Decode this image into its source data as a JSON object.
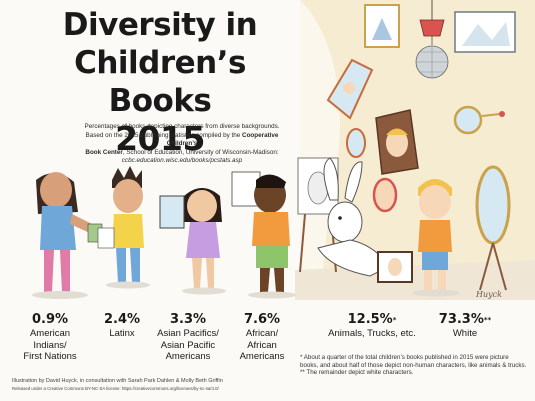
{
  "title": {
    "line1": "Diversity in",
    "line2": "Children’s Books",
    "line3": "2015"
  },
  "description": {
    "line1": "Percentages of books depicting characters from diverse backgrounds.",
    "line2_pre": "Based on the 2015 publishing statistics compiled by the ",
    "line2_bold": "Cooperative Children’s",
    "line3_bold": "Book Center",
    "line3_post": ", School of Education, University of Wisconsin-Madison:",
    "url": "ccbc.education.wisc.edu/books/pcstats.asp"
  },
  "chart_data": {
    "type": "table",
    "title": "Diversity in Children’s Books 2015",
    "categories": [
      "American Indians/ First Nations",
      "Latinx",
      "Asian Pacifics/ Asian Pacific Americans",
      "African/ African Americans",
      "Animals, Trucks, etc.",
      "White"
    ],
    "values": [
      0.9,
      2.4,
      3.3,
      7.6,
      12.5,
      73.3
    ],
    "unit": "%",
    "stats": [
      {
        "pct": "0.9%",
        "label1": "American",
        "label2": "Indians/",
        "label3": "First Nations",
        "mark": ""
      },
      {
        "pct": "2.4%",
        "label1": "Latinx",
        "label2": "",
        "label3": "",
        "mark": ""
      },
      {
        "pct": "3.3%",
        "label1": "Asian Pacifics/",
        "label2": "Asian Pacific",
        "label3": "Americans",
        "mark": ""
      },
      {
        "pct": "7.6%",
        "label1": "African/",
        "label2": "African",
        "label3": "Americans",
        "mark": ""
      },
      {
        "pct": "12.5%",
        "label1": "Animals, Trucks, etc.",
        "label2": "",
        "label3": "",
        "mark": "*"
      },
      {
        "pct": "73.3%",
        "label1": "White",
        "label2": "",
        "label3": "",
        "mark": "**"
      }
    ]
  },
  "footnotes": {
    "note1": "* About a quarter of the total children’s books published in 2015 were picture books, and about half of those depict non-human characters, like animals & trucks.",
    "note2": "** The remainder depict white characters."
  },
  "credits": {
    "line1": "Illustration by David Huyck, in consultation with Sarah Park Dahlen & Molly Beth Griffin",
    "line2": "Released under a Creative Commons BY-NC-SA license: https://creativecommons.org/licenses/by-nc-sa/4.0/"
  },
  "signature": "Huyck",
  "colors": {
    "wall": "#f3e7c9",
    "mirror_frame": "#c96a3b",
    "gold_frame": "#c9a24a",
    "skin_light": "#f6d7b8",
    "skin_dark": "#6b4326",
    "shirt_blue": "#6fa8d8",
    "shirt_orange": "#f29a3e",
    "shirt_green": "#8ec46a"
  }
}
